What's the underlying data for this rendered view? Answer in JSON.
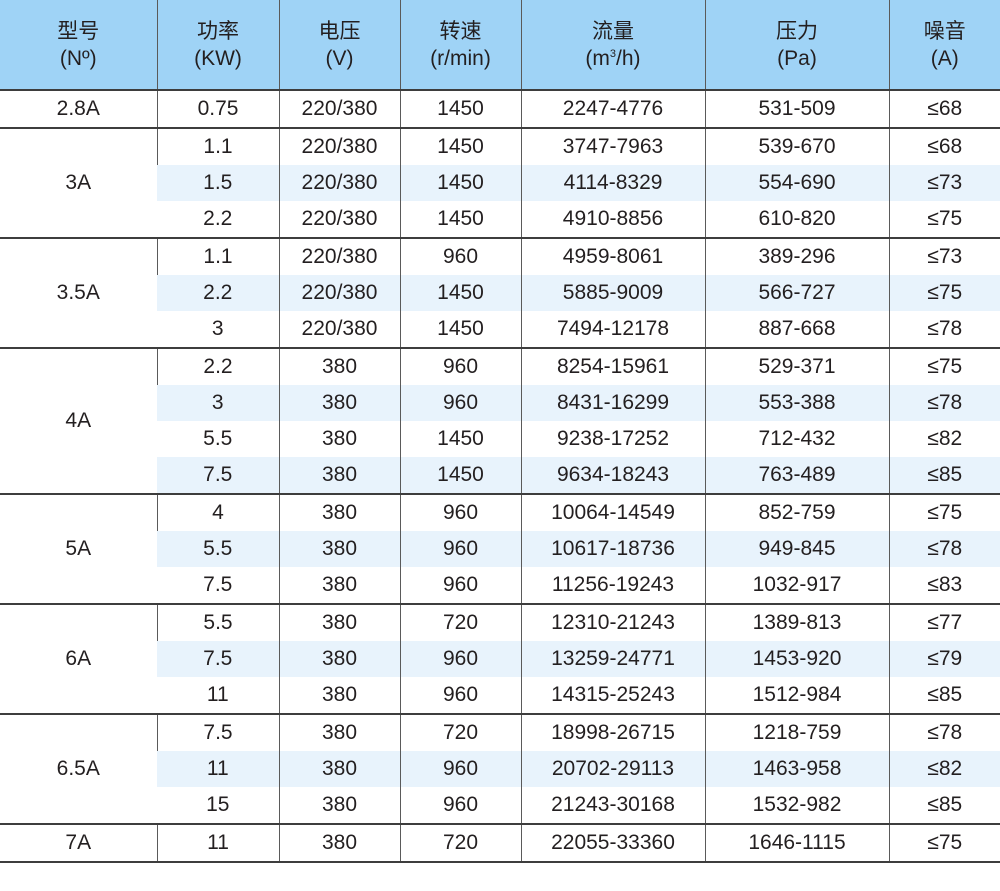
{
  "headers": [
    {
      "line1": "型号",
      "line2": "(Nº)"
    },
    {
      "line1": "功率",
      "line2": "(KW)"
    },
    {
      "line1": "电压",
      "line2": "(V)"
    },
    {
      "line1": "转速",
      "line2": "(r/min)"
    },
    {
      "line1": "流量",
      "line2_pre": "(m",
      "line2_sup": "3",
      "line2_post": "/h)"
    },
    {
      "line1": "压力",
      "line2": "(Pa)"
    },
    {
      "line1": "噪音",
      "line2": "(A)"
    }
  ],
  "groups": [
    {
      "model": "2.8A",
      "rows": [
        [
          "0.75",
          "220/380",
          "1450",
          "2247-4776",
          "531-509",
          "≤68"
        ]
      ]
    },
    {
      "model": "3A",
      "rows": [
        [
          "1.1",
          "220/380",
          "1450",
          "3747-7963",
          "539-670",
          "≤68"
        ],
        [
          "1.5",
          "220/380",
          "1450",
          "4114-8329",
          "554-690",
          "≤73"
        ],
        [
          "2.2",
          "220/380",
          "1450",
          "4910-8856",
          "610-820",
          "≤75"
        ]
      ]
    },
    {
      "model": "3.5A",
      "rows": [
        [
          "1.1",
          "220/380",
          "960",
          "4959-8061",
          "389-296",
          "≤73"
        ],
        [
          "2.2",
          "220/380",
          "1450",
          "5885-9009",
          "566-727",
          "≤75"
        ],
        [
          "3",
          "220/380",
          "1450",
          "7494-12178",
          "887-668",
          "≤78"
        ]
      ]
    },
    {
      "model": "4A",
      "rows": [
        [
          "2.2",
          "380",
          "960",
          "8254-15961",
          "529-371",
          "≤75"
        ],
        [
          "3",
          "380",
          "960",
          "8431-16299",
          "553-388",
          "≤78"
        ],
        [
          "5.5",
          "380",
          "1450",
          "9238-17252",
          "712-432",
          "≤82"
        ],
        [
          "7.5",
          "380",
          "1450",
          "9634-18243",
          "763-489",
          "≤85"
        ]
      ]
    },
    {
      "model": "5A",
      "rows": [
        [
          "4",
          "380",
          "960",
          "10064-14549",
          "852-759",
          "≤75"
        ],
        [
          "5.5",
          "380",
          "960",
          "10617-18736",
          "949-845",
          "≤78"
        ],
        [
          "7.5",
          "380",
          "960",
          "11256-19243",
          "1032-917",
          "≤83"
        ]
      ]
    },
    {
      "model": "6A",
      "rows": [
        [
          "5.5",
          "380",
          "720",
          "12310-21243",
          "1389-813",
          "≤77"
        ],
        [
          "7.5",
          "380",
          "960",
          "13259-24771",
          "1453-920",
          "≤79"
        ],
        [
          "11",
          "380",
          "960",
          "14315-25243",
          "1512-984",
          "≤85"
        ]
      ]
    },
    {
      "model": "6.5A",
      "rows": [
        [
          "7.5",
          "380",
          "720",
          "18998-26715",
          "1218-759",
          "≤78"
        ],
        [
          "11",
          "380",
          "960",
          "20702-29113",
          "1463-958",
          "≤82"
        ],
        [
          "15",
          "380",
          "960",
          "21243-30168",
          "1532-982",
          "≤85"
        ]
      ]
    },
    {
      "model": "7A",
      "rows": [
        [
          "11",
          "380",
          "720",
          "22055-33360",
          "1646-1115",
          "≤75"
        ]
      ]
    }
  ]
}
